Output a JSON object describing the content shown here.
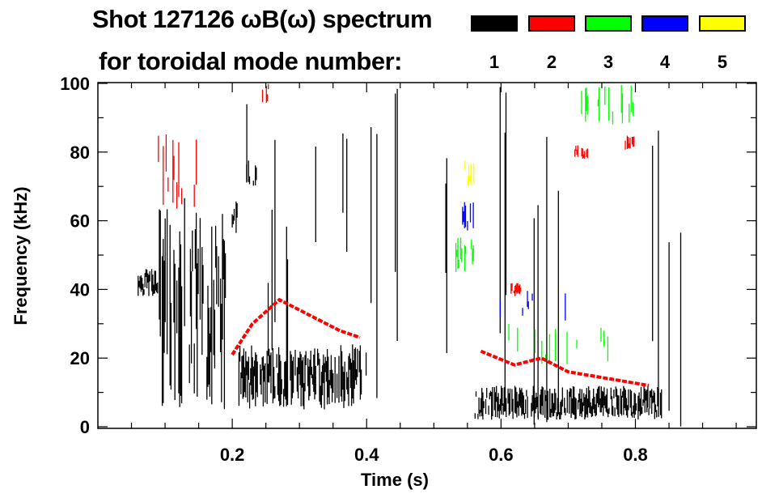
{
  "chart_data": {
    "type": "heatmap",
    "title": "Shot 127126 ωB(ω) spectrum",
    "subtitle": "for toroidal mode number:",
    "xlabel": "Time (s)",
    "ylabel": "Frequency (kHz)",
    "xlim": [
      0,
      0.98
    ],
    "ylim": [
      0,
      100
    ],
    "xticks": [
      "0.2",
      "0.4",
      "0.6",
      "0.8"
    ],
    "xtick_values": [
      0.2,
      0.4,
      0.6,
      0.8
    ],
    "yticks": [
      "0",
      "20",
      "40",
      "60",
      "80",
      "100"
    ],
    "ytick_values": [
      0,
      20,
      40,
      60,
      80,
      100
    ],
    "legend": [
      {
        "label": "1",
        "color": "#000000"
      },
      {
        "label": "2",
        "color": "#ff0000"
      },
      {
        "label": "3",
        "color": "#00ff00"
      },
      {
        "label": "4",
        "color": "#0000ff"
      },
      {
        "label": "5",
        "color": "#ffff00"
      }
    ],
    "legend_placement": "top-right",
    "regions": [
      {
        "mode": 1,
        "t": [
          0.06,
          0.09
        ],
        "f": [
          38,
          46
        ],
        "density": 0.9
      },
      {
        "mode": 1,
        "t": [
          0.09,
          0.19
        ],
        "f": [
          5,
          68
        ],
        "density": 0.7
      },
      {
        "mode": 1,
        "t": [
          0.2,
          0.21
        ],
        "f": [
          55,
          66
        ],
        "density": 0.8
      },
      {
        "mode": 1,
        "t": [
          0.21,
          0.4
        ],
        "f": [
          5,
          24
        ],
        "density": 0.85
      },
      {
        "mode": 1,
        "t": [
          0.22,
          0.24
        ],
        "f": [
          70,
          78
        ],
        "density": 0.6
      },
      {
        "mode": 1,
        "t": [
          0.56,
          0.84
        ],
        "f": [
          2,
          12
        ],
        "density": 0.85
      },
      {
        "mode": 1,
        "t": [
          0.2,
          0.9
        ],
        "f": [
          0,
          100
        ],
        "density": 0.05
      },
      {
        "mode": 2,
        "t": [
          0.09,
          0.15
        ],
        "f": [
          63,
          86
        ],
        "density": 0.25
      },
      {
        "mode": 2,
        "t": [
          0.245,
          0.255
        ],
        "f": [
          94,
          100
        ],
        "density": 0.8
      },
      {
        "mode": 2,
        "t": [
          0.615,
          0.63
        ],
        "f": [
          38,
          42
        ],
        "density": 0.8
      },
      {
        "mode": 2,
        "t": [
          0.71,
          0.73
        ],
        "f": [
          78,
          82
        ],
        "density": 0.6
      },
      {
        "mode": 2,
        "t": [
          0.785,
          0.8
        ],
        "f": [
          80,
          85
        ],
        "density": 0.6
      },
      {
        "mode": 3,
        "t": [
          0.53,
          0.56
        ],
        "f": [
          45,
          56
        ],
        "density": 0.5
      },
      {
        "mode": 3,
        "t": [
          0.6,
          0.76
        ],
        "f": [
          18,
          30
        ],
        "density": 0.2
      },
      {
        "mode": 3,
        "t": [
          0.72,
          0.8
        ],
        "f": [
          88,
          100
        ],
        "density": 0.2
      },
      {
        "mode": 4,
        "t": [
          0.54,
          0.56
        ],
        "f": [
          57,
          66
        ],
        "density": 0.6
      },
      {
        "mode": 4,
        "t": [
          0.58,
          0.7
        ],
        "f": [
          30,
          40
        ],
        "density": 0.08
      },
      {
        "mode": 5,
        "t": [
          0.545,
          0.56
        ],
        "f": [
          70,
          78
        ],
        "density": 0.6
      }
    ],
    "mode_lines": [
      {
        "mode": 2,
        "points": [
          [
            0.2,
            21
          ],
          [
            0.23,
            30
          ],
          [
            0.27,
            37
          ],
          [
            0.32,
            32
          ],
          [
            0.36,
            28
          ],
          [
            0.39,
            26
          ]
        ]
      },
      {
        "mode": 2,
        "points": [
          [
            0.57,
            22
          ],
          [
            0.62,
            18
          ],
          [
            0.66,
            20
          ],
          [
            0.7,
            16
          ],
          [
            0.76,
            14
          ],
          [
            0.82,
            12
          ]
        ]
      }
    ]
  }
}
